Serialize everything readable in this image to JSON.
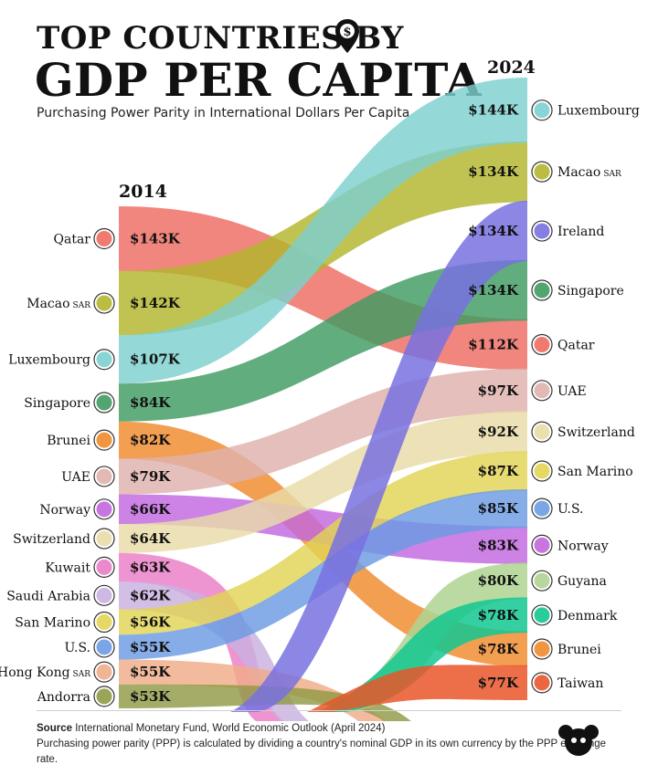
{
  "header": {
    "title_line1": "TOP COUNTRIES BY",
    "title_line2": "GDP PER CAPITA",
    "subtitle": "Purchasing Power Parity in International Dollars Per Capita"
  },
  "footer": {
    "source_label": "Source",
    "source_text": "International Monetary Fund, World Economic Outlook (April 2024)",
    "note": "Purchasing power parity (PPP) is calculated by dividing a country's nominal GDP in its own currency by the PPP exchange rate."
  },
  "colors": {
    "Qatar": "#ee6b61",
    "Macao": "#b2b62c",
    "Luxembourg": "#7ccfcf",
    "Singapore": "#3f9b62",
    "Brunei": "#f08a2c",
    "UAE": "#dfb1ac",
    "Norway": "#c266df",
    "Switzerland": "#e9dca7",
    "Kuwait": "#ea7cc7",
    "SaudiArabia": "#c9b0e1",
    "SanMarino": "#e2d454",
    "US": "#6b9be3",
    "HongKong": "#f0ac88",
    "Andorra": "#919a45",
    "Ireland": "#7871e0",
    "Guyana": "#aed392",
    "Denmark": "#12c790",
    "Taiwan": "#e9562a"
  },
  "chart_data": {
    "type": "bump",
    "title": "TOP COUNTRIES BY GDP PER CAPITA",
    "subtitle": "Purchasing Power Parity in International Dollars Per Capita",
    "left_year": "2014",
    "right_year": "2024",
    "left": [
      {
        "key": "Qatar",
        "name": "Qatar",
        "label": "$143K",
        "value": 143
      },
      {
        "key": "Macao",
        "name": "Macao",
        "suffix": "SAR",
        "label": "$142K",
        "value": 142
      },
      {
        "key": "Luxembourg",
        "name": "Luxembourg",
        "label": "$107K",
        "value": 107
      },
      {
        "key": "Singapore",
        "name": "Singapore",
        "label": "$84K",
        "value": 84
      },
      {
        "key": "Brunei",
        "name": "Brunei",
        "label": "$82K",
        "value": 82
      },
      {
        "key": "UAE",
        "name": "UAE",
        "label": "$79K",
        "value": 79
      },
      {
        "key": "Norway",
        "name": "Norway",
        "label": "$66K",
        "value": 66
      },
      {
        "key": "Switzerland",
        "name": "Switzerland",
        "label": "$64K",
        "value": 64
      },
      {
        "key": "Kuwait",
        "name": "Kuwait",
        "label": "$63K",
        "value": 63
      },
      {
        "key": "SaudiArabia",
        "name": "Saudi Arabia",
        "label": "$62K",
        "value": 62
      },
      {
        "key": "SanMarino",
        "name": "San Marino",
        "label": "$56K",
        "value": 56
      },
      {
        "key": "US",
        "name": "U.S.",
        "label": "$55K",
        "value": 55
      },
      {
        "key": "HongKong",
        "name": "Hong Kong",
        "suffix": "SAR",
        "label": "$55K",
        "value": 55
      },
      {
        "key": "Andorra",
        "name": "Andorra",
        "label": "$53K",
        "value": 53
      }
    ],
    "right": [
      {
        "key": "Luxembourg",
        "name": "Luxembourg",
        "label": "$144K",
        "value": 144
      },
      {
        "key": "Macao",
        "name": "Macao",
        "suffix": "SAR",
        "label": "$134K",
        "value": 134
      },
      {
        "key": "Ireland",
        "name": "Ireland",
        "label": "$134K",
        "value": 134
      },
      {
        "key": "Singapore",
        "name": "Singapore",
        "label": "$134K",
        "value": 134
      },
      {
        "key": "Qatar",
        "name": "Qatar",
        "label": "$112K",
        "value": 112
      },
      {
        "key": "UAE",
        "name": "UAE",
        "label": "$97K",
        "value": 97
      },
      {
        "key": "Switzerland",
        "name": "Switzerland",
        "label": "$92K",
        "value": 92
      },
      {
        "key": "SanMarino",
        "name": "San Marino",
        "label": "$87K",
        "value": 87
      },
      {
        "key": "US",
        "name": "U.S.",
        "label": "$85K",
        "value": 85
      },
      {
        "key": "Norway",
        "name": "Norway",
        "label": "$83K",
        "value": 83
      },
      {
        "key": "Guyana",
        "name": "Guyana",
        "label": "$80K",
        "value": 80
      },
      {
        "key": "Denmark",
        "name": "Denmark",
        "label": "$78K",
        "value": 78
      },
      {
        "key": "Brunei",
        "name": "Brunei",
        "label": "$78K",
        "value": 78
      },
      {
        "key": "Taiwan",
        "name": "Taiwan",
        "label": "$77K",
        "value": 77
      }
    ]
  }
}
